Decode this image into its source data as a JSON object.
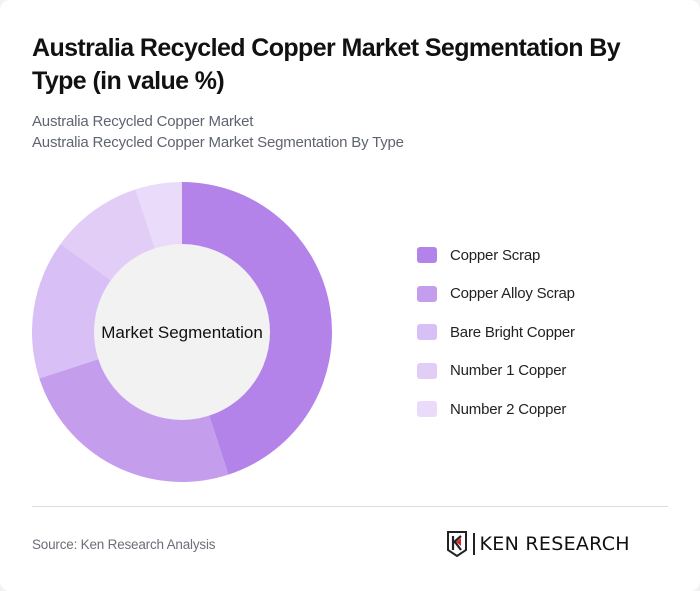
{
  "header": {
    "title": "Australia Recycled Copper Market Segmentation By Type (in value %)",
    "subtitle_1": "Australia Recycled Copper Market",
    "subtitle_2": "Australia Recycled Copper Market Segmentation By Type"
  },
  "chart_data": {
    "type": "pie",
    "variant": "donut",
    "title": "Australia Recycled Copper Market Segmentation By Type (in value %)",
    "center_label": "Market Segmentation",
    "categories": [
      "Copper Scrap",
      "Copper Alloy Scrap",
      "Bare Bright Copper",
      "Number 1 Copper",
      "Number 2 Copper"
    ],
    "values": [
      45,
      25,
      15,
      10,
      5
    ],
    "colors": [
      "#b383ea",
      "#c59ded",
      "#d8bff5",
      "#e2cdf7",
      "#e9dbf9"
    ],
    "legend_position": "right"
  },
  "legend": {
    "items": [
      {
        "label": "Copper Scrap",
        "color": "#b383ea"
      },
      {
        "label": "Copper Alloy Scrap",
        "color": "#c59ded"
      },
      {
        "label": "Bare Bright Copper",
        "color": "#d8bff5"
      },
      {
        "label": "Number 1 Copper",
        "color": "#e2cdf7"
      },
      {
        "label": "Number 2 Copper",
        "color": "#e9dbf9"
      }
    ]
  },
  "footer": {
    "source": "Source: Ken Research Analysis",
    "logo_text": "KEN RESEARCH"
  }
}
